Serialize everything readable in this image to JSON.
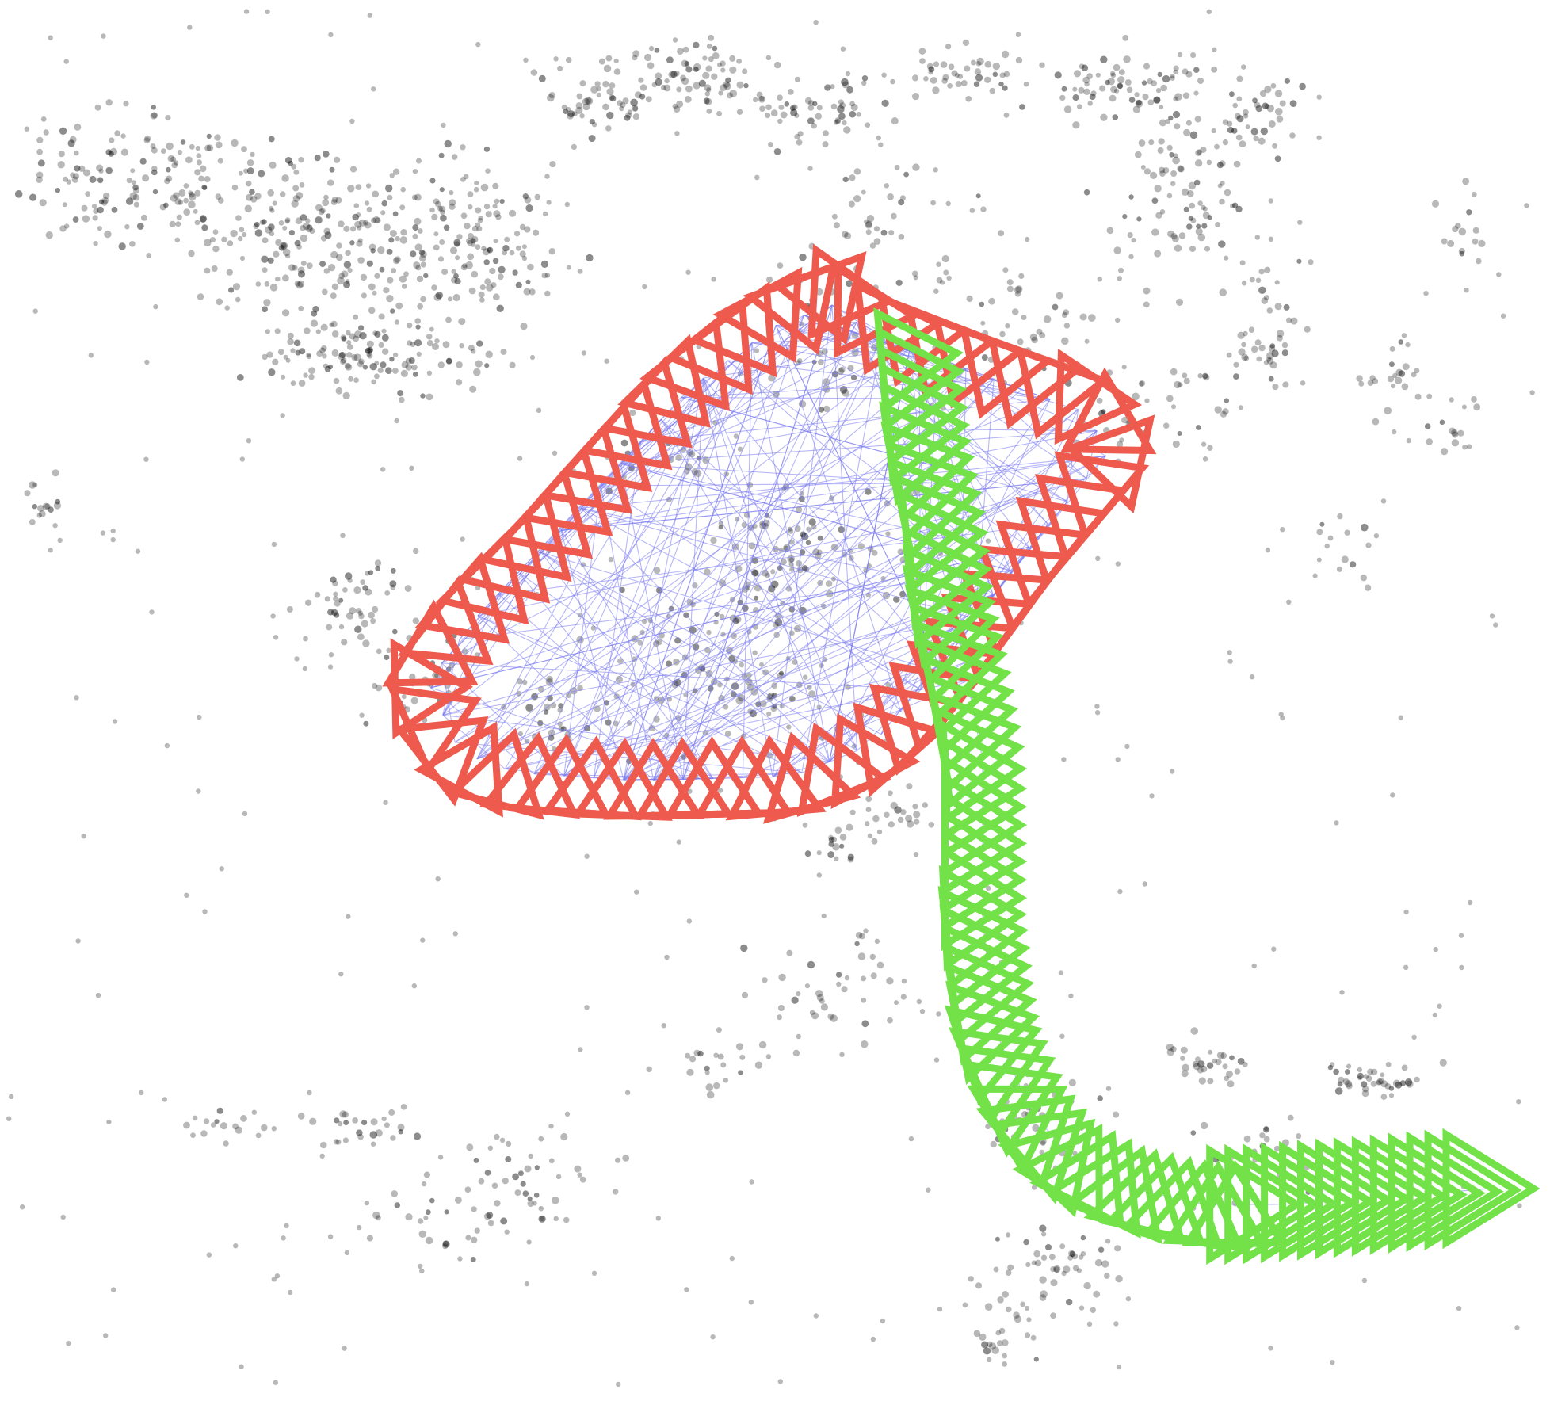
{
  "colors": {
    "background": "#ffffff",
    "point_cloud": "#000000",
    "loop_closure_edges": "#7b7bf0",
    "trajectory_a": "#ee5a4d",
    "trajectory_b": "#72e248"
  },
  "elements": {
    "point_cloud": "map-point-cloud",
    "trajectory_a": "red-camera-frustum-loop",
    "trajectory_b": "green-camera-frustum-path",
    "edges": "covisibility-edges"
  }
}
